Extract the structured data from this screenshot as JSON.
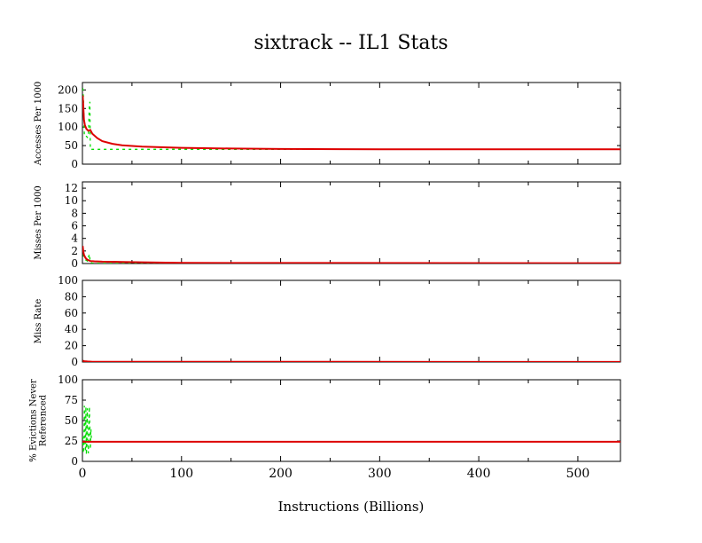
{
  "chart_data": {
    "type": "line",
    "title": "sixtrack -- IL1  Stats",
    "xlabel": "Instructions (Billions)",
    "xlim": [
      0,
      543
    ],
    "xticks": [
      0,
      100,
      200,
      300,
      400,
      500
    ],
    "colors": {
      "cumulative": "#dd0000",
      "interval": "#00dd00"
    },
    "panels": [
      {
        "ylabel": [
          "Accesses Per 1000"
        ],
        "ylim": [
          0,
          220
        ],
        "yticks": [
          0,
          50,
          100,
          150,
          200
        ],
        "series": [
          {
            "color": "green",
            "style": "dashed",
            "x": [
              0.3,
              1,
              2,
              3,
              4,
              5,
              6,
              7,
              7.5,
              8,
              9,
              10,
              20,
              40,
              60,
              100,
              150,
              200,
              250,
              300,
              400,
              543
            ],
            "y": [
              205,
              180,
              75,
              75,
              75,
              72,
              74,
              160,
              168,
              40,
              40,
              40,
              40,
              40,
              40,
              40,
              40,
              40,
              40,
              40,
              40,
              40
            ]
          },
          {
            "color": "red",
            "style": "solid",
            "x": [
              0.3,
              0.8,
              1.5,
              2.5,
              4,
              6,
              8,
              10,
              15,
              20,
              30,
              40,
              60,
              100,
              150,
              200,
              300,
              400,
              543
            ],
            "y": [
              185,
              160,
              120,
              105,
              95,
              90,
              92,
              82,
              70,
              62,
              55,
              51,
              47,
              44,
              42,
              41,
              40,
              40,
              40
            ]
          }
        ]
      },
      {
        "ylabel": [
          "Misses Per 1000"
        ],
        "ylim": [
          0,
          13
        ],
        "yticks": [
          0,
          2,
          4,
          6,
          8,
          10,
          12
        ],
        "series": [
          {
            "color": "green",
            "style": "dashed",
            "x": [
              0.3,
              1,
              2,
              3,
              5,
              7,
              8,
              10,
              20,
              543
            ],
            "y": [
              2.5,
              1.2,
              0.8,
              0.6,
              0.4,
              1.5,
              0.2,
              0.05,
              0.02,
              0.02
            ]
          },
          {
            "color": "red",
            "style": "solid",
            "x": [
              0.3,
              0.8,
              1.5,
              3,
              5,
              8,
              12,
              20,
              40,
              60,
              100,
              200,
              543
            ],
            "y": [
              2.8,
              2.0,
              1.4,
              0.9,
              0.6,
              0.4,
              0.35,
              0.3,
              0.25,
              0.2,
              0.1,
              0.08,
              0.05
            ]
          }
        ]
      },
      {
        "ylabel": [
          "Miss Rate"
        ],
        "ylim": [
          0,
          100
        ],
        "yticks": [
          0,
          20,
          40,
          60,
          80,
          100
        ],
        "series": [
          {
            "color": "green",
            "style": "dashed",
            "x": [
              0.3,
              2,
              5,
              8,
              543
            ],
            "y": [
              1.5,
              0.8,
              0.5,
              0.3,
              0.1
            ]
          },
          {
            "color": "red",
            "style": "solid",
            "x": [
              0.3,
              2,
              5,
              10,
              543
            ],
            "y": [
              1.5,
              1.0,
              0.6,
              0.3,
              0.1
            ]
          }
        ]
      },
      {
        "ylabel": [
          "% Evictions Never",
          "Referenced"
        ],
        "ylim": [
          0,
          100
        ],
        "yticks": [
          0,
          25,
          50,
          75,
          100
        ],
        "series": [
          {
            "color": "green",
            "style": "dashed",
            "x": [
              0.3,
              0.8,
              1.5,
              2,
              3,
              3.5,
              4,
              5,
              5.5,
              6,
              7,
              8,
              8.5,
              9,
              10,
              20,
              100,
              300,
              543
            ],
            "y": [
              30,
              10,
              18,
              68,
              12,
              67,
              8,
              65,
              20,
              10,
              67,
              15,
              40,
              28,
              24,
              24,
              24,
              24,
              24
            ]
          },
          {
            "color": "red",
            "style": "solid",
            "x": [
              0.3,
              1,
              3,
              6,
              10,
              50,
              100,
              200,
              300,
              400,
              543
            ],
            "y": [
              25,
              24,
              24,
              24,
              24,
              24,
              24,
              24,
              24,
              24,
              24
            ]
          }
        ]
      }
    ]
  }
}
